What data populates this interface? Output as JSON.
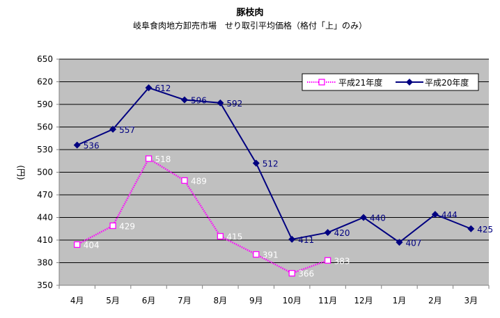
{
  "chart_data": {
    "type": "line",
    "title": "豚枝肉",
    "subtitle": "岐阜食肉地方卸売市場　せり取引平均価格（格付「上」のみ）",
    "ylabel": "(円)",
    "xlabel": "",
    "ylim": [
      350,
      650
    ],
    "yticks": [
      350,
      380,
      410,
      440,
      470,
      500,
      530,
      560,
      590,
      620,
      650
    ],
    "categories": [
      "4月",
      "5月",
      "6月",
      "7月",
      "8月",
      "9月",
      "10月",
      "11月",
      "12月",
      "1月",
      "2月",
      "3月"
    ],
    "grid": true,
    "legend_position": "top-right",
    "series": [
      {
        "name": "平成21年度",
        "values": [
          404,
          429,
          518,
          489,
          415,
          391,
          366,
          383,
          null,
          null,
          null,
          null
        ],
        "color": "#ff00ff",
        "marker": "square-hollow",
        "line_style": "dotted",
        "label_color": "#ffffff"
      },
      {
        "name": "平成20年度",
        "values": [
          536,
          557,
          612,
          596,
          592,
          512,
          411,
          420,
          440,
          407,
          444,
          425
        ],
        "color": "#000080",
        "marker": "diamond",
        "line_style": "solid",
        "label_color": "#000080"
      }
    ],
    "plot_background": "#c0c0c0"
  }
}
